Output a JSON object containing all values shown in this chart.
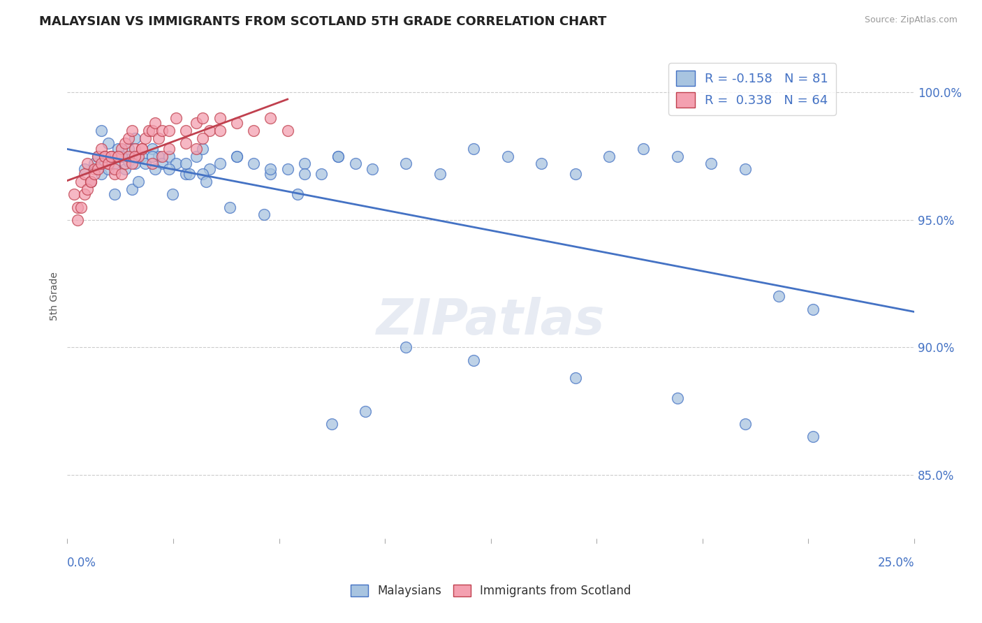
{
  "title": "MALAYSIAN VS IMMIGRANTS FROM SCOTLAND 5TH GRADE CORRELATION CHART",
  "source": "Source: ZipAtlas.com",
  "ylabel": "5th Grade",
  "yaxis_labels": [
    "85.0%",
    "90.0%",
    "95.0%",
    "100.0%"
  ],
  "yaxis_values": [
    0.85,
    0.9,
    0.95,
    1.0
  ],
  "xlim": [
    0.0,
    0.25
  ],
  "ylim": [
    0.825,
    1.015
  ],
  "legend_r_blue": "-0.158",
  "legend_n_blue": "81",
  "legend_r_pink": "0.338",
  "legend_n_pink": "64",
  "blue_color": "#a8c4e0",
  "pink_color": "#f4a0b0",
  "trend_blue": "#4472c4",
  "trend_pink": "#c0404e",
  "watermark": "ZIPatlas",
  "background_color": "#ffffff",
  "blue_scatter_x": [
    0.005,
    0.007,
    0.008,
    0.009,
    0.01,
    0.011,
    0.012,
    0.013,
    0.014,
    0.015,
    0.016,
    0.017,
    0.018,
    0.019,
    0.02,
    0.022,
    0.023,
    0.025,
    0.027,
    0.028,
    0.03,
    0.032,
    0.035,
    0.038,
    0.04,
    0.042,
    0.045,
    0.05,
    0.055,
    0.06,
    0.065,
    0.07,
    0.075,
    0.08,
    0.085,
    0.09,
    0.01,
    0.012,
    0.015,
    0.018,
    0.02,
    0.025,
    0.03,
    0.035,
    0.04,
    0.05,
    0.06,
    0.07,
    0.08,
    0.1,
    0.11,
    0.12,
    0.13,
    0.14,
    0.15,
    0.16,
    0.17,
    0.18,
    0.19,
    0.2,
    0.014,
    0.016,
    0.019,
    0.021,
    0.026,
    0.031,
    0.036,
    0.041,
    0.048,
    0.058,
    0.068,
    0.078,
    0.088,
    0.21,
    0.22,
    0.1,
    0.12,
    0.15,
    0.18,
    0.2,
    0.22
  ],
  "blue_scatter_y": [
    0.97,
    0.965,
    0.972,
    0.975,
    0.968,
    0.973,
    0.97,
    0.975,
    0.972,
    0.978,
    0.975,
    0.97,
    0.973,
    0.975,
    0.972,
    0.975,
    0.972,
    0.978,
    0.975,
    0.972,
    0.975,
    0.972,
    0.968,
    0.975,
    0.978,
    0.97,
    0.972,
    0.975,
    0.972,
    0.968,
    0.97,
    0.972,
    0.968,
    0.975,
    0.972,
    0.97,
    0.985,
    0.98,
    0.975,
    0.978,
    0.982,
    0.975,
    0.97,
    0.972,
    0.968,
    0.975,
    0.97,
    0.968,
    0.975,
    0.972,
    0.968,
    0.978,
    0.975,
    0.972,
    0.968,
    0.975,
    0.978,
    0.975,
    0.972,
    0.97,
    0.96,
    0.975,
    0.962,
    0.965,
    0.97,
    0.96,
    0.968,
    0.965,
    0.955,
    0.952,
    0.96,
    0.87,
    0.875,
    0.92,
    0.915,
    0.9,
    0.895,
    0.888,
    0.88,
    0.87,
    0.865
  ],
  "pink_scatter_x": [
    0.002,
    0.003,
    0.004,
    0.005,
    0.006,
    0.007,
    0.008,
    0.009,
    0.01,
    0.011,
    0.012,
    0.013,
    0.014,
    0.015,
    0.016,
    0.017,
    0.018,
    0.019,
    0.02,
    0.021,
    0.022,
    0.023,
    0.024,
    0.025,
    0.026,
    0.027,
    0.028,
    0.03,
    0.032,
    0.035,
    0.038,
    0.04,
    0.042,
    0.045,
    0.05,
    0.055,
    0.06,
    0.065,
    0.003,
    0.004,
    0.005,
    0.006,
    0.007,
    0.008,
    0.009,
    0.01,
    0.011,
    0.012,
    0.013,
    0.014,
    0.015,
    0.016,
    0.017,
    0.018,
    0.019,
    0.02,
    0.022,
    0.025,
    0.028,
    0.03,
    0.035,
    0.038,
    0.04,
    0.045
  ],
  "pink_scatter_y": [
    0.96,
    0.955,
    0.965,
    0.968,
    0.972,
    0.965,
    0.97,
    0.975,
    0.978,
    0.975,
    0.972,
    0.975,
    0.968,
    0.975,
    0.978,
    0.98,
    0.982,
    0.985,
    0.978,
    0.975,
    0.978,
    0.982,
    0.985,
    0.985,
    0.988,
    0.982,
    0.985,
    0.985,
    0.99,
    0.985,
    0.988,
    0.99,
    0.985,
    0.99,
    0.988,
    0.985,
    0.99,
    0.985,
    0.95,
    0.955,
    0.96,
    0.962,
    0.965,
    0.968,
    0.97,
    0.972,
    0.975,
    0.972,
    0.975,
    0.97,
    0.975,
    0.968,
    0.972,
    0.975,
    0.972,
    0.975,
    0.978,
    0.972,
    0.975,
    0.978,
    0.98,
    0.978,
    0.982,
    0.985
  ]
}
